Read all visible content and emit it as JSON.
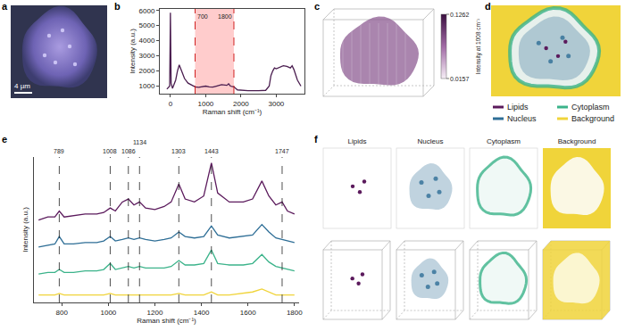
{
  "panel_labels": [
    "a",
    "b",
    "c",
    "d",
    "e",
    "f"
  ],
  "image_a": {
    "scale_bar": "4 µm"
  },
  "image_c": {
    "colorbar": {
      "title": "Intensity at 1008 cm⁻¹",
      "range": [
        0.0157,
        0.1262
      ],
      "ticks": [
        0.0157,
        0.1262
      ]
    }
  },
  "image_f": {
    "titles": [
      "Lipids",
      "Nucleus",
      "Cytoplasm",
      "Background"
    ]
  },
  "chart_data": [
    {
      "type": "line",
      "x": [
        -100,
        -20,
        0,
        20,
        60,
        150,
        200,
        250,
        300,
        400,
        500,
        600,
        700,
        800,
        1000,
        1100,
        1200,
        1300,
        1450,
        1600,
        1650,
        1700,
        1800,
        1900,
        2000,
        2200,
        2500,
        2700,
        2800,
        2850,
        2900,
        2950,
        3000,
        3100,
        3200,
        3300,
        3400,
        3450,
        3500,
        3600,
        3700
      ],
      "values": [
        800,
        1000,
        5850,
        1200,
        850,
        1400,
        2000,
        2400,
        2100,
        1500,
        1200,
        1050,
        950,
        920,
        1000,
        950,
        930,
        1000,
        1100,
        1050,
        1150,
        1000,
        950,
        750,
        720,
        700,
        700,
        720,
        1000,
        1700,
        2000,
        2200,
        2150,
        2250,
        2350,
        2300,
        2200,
        2350,
        2100,
        1400,
        1000
      ],
      "color": "#4a1d4f",
      "xlabel": "Raman shift (cm⁻¹)",
      "ylabel": "Intensity (a.u.)",
      "xlim": [
        -300,
        3800
      ],
      "xticks": [
        0,
        1000,
        2000,
        3000
      ],
      "ylim": [
        500,
        6100
      ],
      "yticks": [
        1000,
        2000,
        3000,
        4000,
        5000,
        6000
      ],
      "shaded": [
        700,
        1800
      ],
      "annotations": [
        {
          "x": 700,
          "text": "700"
        },
        {
          "x": 1800,
          "text": "1800"
        }
      ]
    },
    {
      "type": "line",
      "x": [
        700,
        740,
        770,
        789,
        810,
        850,
        900,
        950,
        980,
        1008,
        1030,
        1060,
        1086,
        1110,
        1134,
        1160,
        1200,
        1240,
        1270,
        1303,
        1330,
        1370,
        1410,
        1443,
        1470,
        1520,
        1580,
        1620,
        1660,
        1690,
        1720,
        1747,
        1770,
        1800
      ],
      "series": [
        {
          "name": "Lipids",
          "color": "#5b1a5c",
          "values": [
            0.6,
            0.62,
            0.62,
            0.66,
            0.62,
            0.63,
            0.64,
            0.64,
            0.65,
            0.68,
            0.66,
            0.72,
            0.74,
            0.7,
            0.72,
            0.68,
            0.67,
            0.69,
            0.72,
            0.84,
            0.74,
            0.72,
            0.76,
            0.98,
            0.78,
            0.72,
            0.72,
            0.74,
            0.86,
            0.76,
            0.7,
            0.72,
            0.66,
            0.64
          ]
        },
        {
          "name": "Nucleus",
          "color": "#2e6e96",
          "values": [
            0.42,
            0.43,
            0.44,
            0.49,
            0.44,
            0.44,
            0.45,
            0.45,
            0.46,
            0.49,
            0.46,
            0.47,
            0.48,
            0.47,
            0.48,
            0.47,
            0.46,
            0.47,
            0.48,
            0.52,
            0.49,
            0.48,
            0.49,
            0.56,
            0.5,
            0.48,
            0.49,
            0.5,
            0.57,
            0.52,
            0.48,
            0.47,
            0.46,
            0.45
          ]
        },
        {
          "name": "Cytoplasm",
          "color": "#3bb38a",
          "values": [
            0.24,
            0.25,
            0.25,
            0.27,
            0.25,
            0.25,
            0.26,
            0.26,
            0.27,
            0.31,
            0.27,
            0.28,
            0.29,
            0.28,
            0.29,
            0.28,
            0.28,
            0.28,
            0.29,
            0.33,
            0.3,
            0.3,
            0.31,
            0.4,
            0.31,
            0.3,
            0.3,
            0.31,
            0.37,
            0.32,
            0.29,
            0.28,
            0.27,
            0.26
          ]
        },
        {
          "name": "Background",
          "color": "#f0d43a",
          "values": [
            0.1,
            0.1,
            0.1,
            0.11,
            0.1,
            0.1,
            0.1,
            0.1,
            0.1,
            0.11,
            0.1,
            0.1,
            0.1,
            0.1,
            0.1,
            0.1,
            0.1,
            0.1,
            0.1,
            0.11,
            0.1,
            0.1,
            0.1,
            0.12,
            0.1,
            0.1,
            0.11,
            0.12,
            0.14,
            0.12,
            0.1,
            0.1,
            0.1,
            0.1
          ]
        }
      ],
      "xlabel": "Raman shift (cm⁻¹)",
      "ylabel": "Intensity (a.u.)",
      "xlim": [
        680,
        1820
      ],
      "xticks": [
        800,
        1000,
        1200,
        1400,
        1600,
        1800
      ],
      "ylim": [
        0.05,
        1.02
      ],
      "tick_labels": "x",
      "annotations": [
        {
          "x": 789,
          "text": "789"
        },
        {
          "x": 1008,
          "text": "1008"
        },
        {
          "x": 1086,
          "text": "1086"
        },
        {
          "x": 1134,
          "text": "1134"
        },
        {
          "x": 1303,
          "text": "1303"
        },
        {
          "x": 1443,
          "text": "1443"
        },
        {
          "x": 1747,
          "text": "1747"
        }
      ]
    }
  ]
}
